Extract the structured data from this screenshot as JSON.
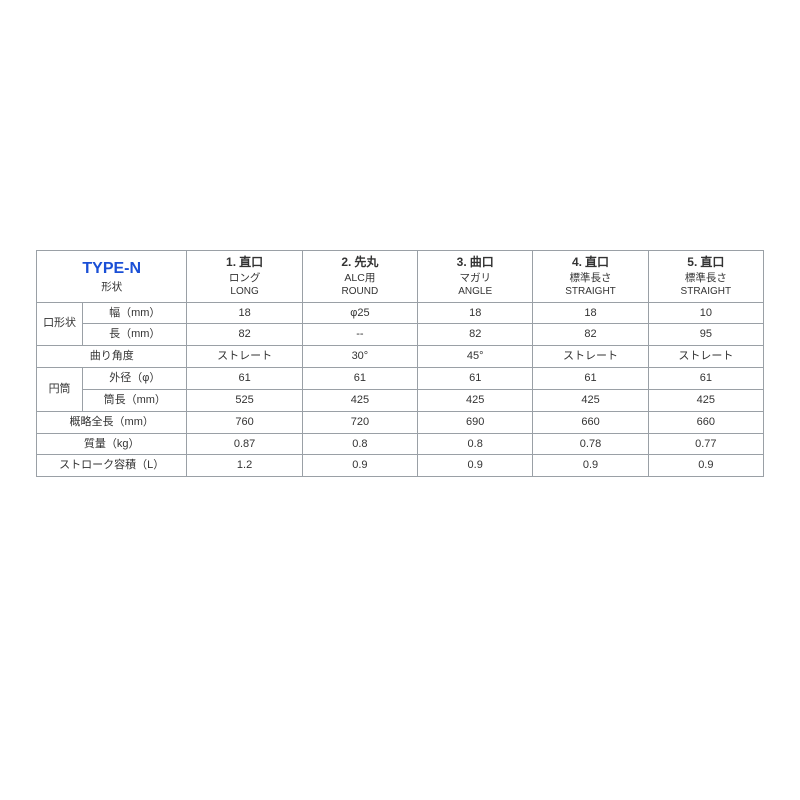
{
  "table": {
    "border_color": "#9aa0a6",
    "background_color": "#ffffff",
    "text_color": "#333333",
    "title_color": "#1a4fd6",
    "title_fontsize": 16,
    "header_fontsize": 12,
    "body_fontsize": 11,
    "title": "TYPE-N",
    "title_sub": "形状",
    "columns": [
      {
        "num": "1.",
        "name_jp": "直口",
        "sub_jp": "ロング",
        "sub_en": "LONG"
      },
      {
        "num": "2.",
        "name_jp": "先丸",
        "sub_jp": "ALC用",
        "sub_en": "ROUND"
      },
      {
        "num": "3.",
        "name_jp": "曲口",
        "sub_jp": "マガリ",
        "sub_en": "ANGLE"
      },
      {
        "num": "4.",
        "name_jp": "直口",
        "sub_jp": "標準長さ",
        "sub_en": "STRAIGHT"
      },
      {
        "num": "5.",
        "name_jp": "直口",
        "sub_jp": "標準長さ",
        "sub_en": "STRAIGHT"
      }
    ],
    "groups": {
      "mouth_shape": "口形状",
      "cylinder": "円筒"
    },
    "rows": [
      {
        "group": "mouth_shape",
        "label": "幅（mm）",
        "values": [
          "18",
          "φ25",
          "18",
          "18",
          "10"
        ]
      },
      {
        "group": "mouth_shape",
        "label": "長（mm）",
        "values": [
          "82",
          "--",
          "82",
          "82",
          "95"
        ]
      },
      {
        "label": "曲り角度",
        "values": [
          "ストレート",
          "30°",
          "45°",
          "ストレート",
          "ストレート"
        ]
      },
      {
        "group": "cylinder",
        "label": "外径（φ）",
        "values": [
          "61",
          "61",
          "61",
          "61",
          "61"
        ]
      },
      {
        "group": "cylinder",
        "label": "筒長（mm）",
        "values": [
          "525",
          "425",
          "425",
          "425",
          "425"
        ]
      },
      {
        "label": "概略全長（mm）",
        "values": [
          "760",
          "720",
          "690",
          "660",
          "660"
        ]
      },
      {
        "label": "質量（kg）",
        "values": [
          "0.87",
          "0.8",
          "0.8",
          "0.78",
          "0.77"
        ]
      },
      {
        "label": "ストローク容積（L）",
        "values": [
          "1.2",
          "0.9",
          "0.9",
          "0.9",
          "0.9"
        ]
      }
    ]
  }
}
